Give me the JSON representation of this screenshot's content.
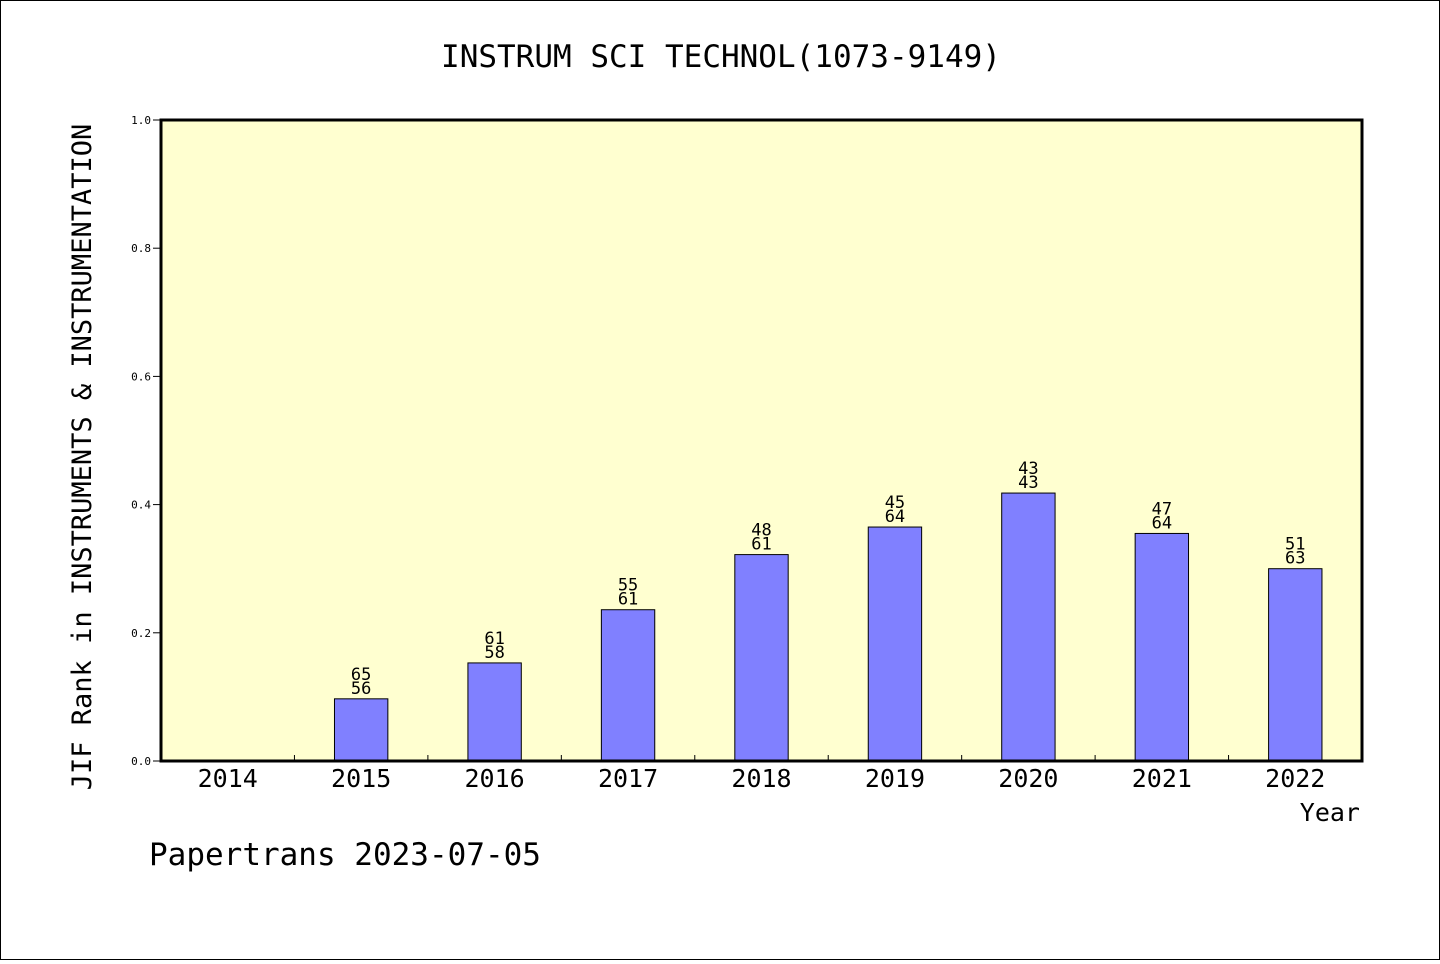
{
  "chart_data": {
    "type": "bar",
    "title": "INSTRUM SCI TECHNOL(1073-9149)",
    "ylabel": "JIF Rank in INSTRUMENTS & INSTRUMENTATION",
    "xlabel": "Year",
    "ylim": [
      0,
      1.0
    ],
    "yticks": [
      "0.0",
      "0.2",
      "0.4",
      "0.6",
      "0.8",
      "1.0"
    ],
    "categories": [
      "2014",
      "2015",
      "2016",
      "2017",
      "2018",
      "2019",
      "2020",
      "2021",
      "2022"
    ],
    "values": [
      null,
      0.097,
      0.153,
      0.236,
      0.322,
      0.365,
      0.418,
      0.355,
      0.3
    ],
    "labels_top": [
      "",
      "65",
      "61",
      "55",
      "48",
      "45",
      "43",
      "47",
      "51"
    ],
    "labels_bottom": [
      "",
      "56",
      "58",
      "61",
      "61",
      "64",
      "43",
      "64",
      "63"
    ],
    "grid": false,
    "legend": "none",
    "colors": {
      "plot_background": "#ffffd0",
      "bar_fill": "#8080ff",
      "bar_stroke": "#000000"
    }
  },
  "footer": {
    "text": "Papertrans 2023-07-05"
  }
}
